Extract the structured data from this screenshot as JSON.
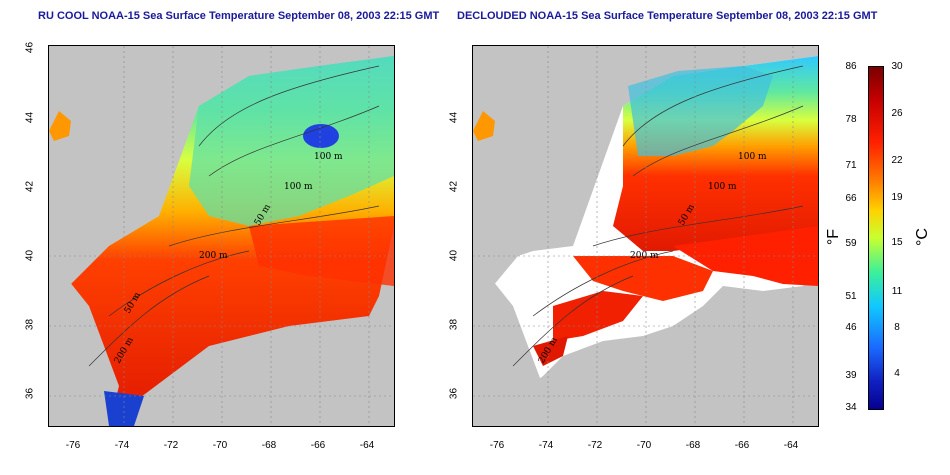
{
  "panels": [
    {
      "title": "RU COOL NOAA-15 Sea Surface Temperature September 08, 2003 22:15 GMT"
    },
    {
      "title": "DECLOUDED NOAA-15 Sea Surface Temperature September 08, 2003 22:15 GMT"
    }
  ],
  "axes": {
    "longitude_ticks": [
      "-76",
      "-74",
      "-72",
      "-70",
      "-68",
      "-66",
      "-64"
    ],
    "latitude_ticks": [
      "46",
      "44",
      "42",
      "40",
      "38",
      "36"
    ]
  },
  "contours": {
    "left": [
      "100 m",
      "100 m",
      "50 m",
      "200 m",
      "50 m",
      "200 m"
    ],
    "right": [
      "100 m",
      "100 m",
      "50 m",
      "200 m",
      "200 m"
    ]
  },
  "colorbar": {
    "fahrenheit": [
      "86",
      "78",
      "71",
      "66",
      "59",
      "51",
      "46",
      "39",
      "34"
    ],
    "celsius": [
      "30",
      "26",
      "22",
      "19",
      "15",
      "11",
      "8",
      "4"
    ],
    "unit_f": "°F",
    "unit_c": "°C"
  },
  "colors": {
    "land": "#c3c3c3",
    "title": "#1a1a9a",
    "warm": "#e02000",
    "cool": "#20a0ff"
  }
}
